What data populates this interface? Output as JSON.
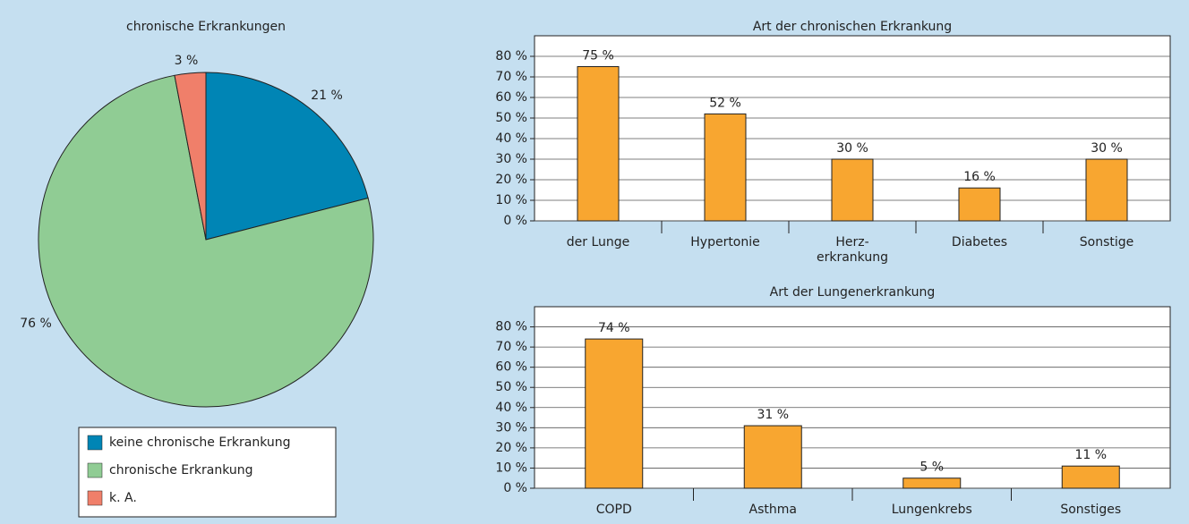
{
  "chart_data": [
    {
      "type": "pie",
      "title": "chronische Erkrankungen",
      "categories": [
        "keine chronische Erkrankung",
        "chronische Erkrankung",
        "k. A."
      ],
      "values": [
        21,
        76,
        3
      ],
      "value_labels": [
        "21 %",
        "76 %",
        "3 %"
      ],
      "colors": [
        "#0085b5",
        "#90cc94",
        "#f07f6a"
      ],
      "legend": "bottom"
    },
    {
      "type": "bar",
      "title": "Art der chronischen Erkrankung",
      "categories": [
        "der Lunge",
        "Hypertonie",
        "Herz-\nerkrankung",
        "Diabetes",
        "Sonstige"
      ],
      "values": [
        75,
        52,
        30,
        16,
        30
      ],
      "value_labels": [
        "75 %",
        "52 %",
        "30 %",
        "16 %",
        "30 %"
      ],
      "color": "#f8a630",
      "ylim": [
        0,
        90
      ],
      "yticks": [
        {
          "value": 0,
          "label": "0 %"
        },
        {
          "value": 10,
          "label": "10 %"
        },
        {
          "value": 20,
          "label": "20 %"
        },
        {
          "value": 30,
          "label": "30 %"
        },
        {
          "value": 40,
          "label": "40 %"
        },
        {
          "value": 50,
          "label": "50 %"
        },
        {
          "value": 60,
          "label": "60 %"
        },
        {
          "value": 70,
          "label": "70 %"
        },
        {
          "value": 80,
          "label": "80 %"
        }
      ],
      "grid": true
    },
    {
      "type": "bar",
      "title": "Art der Lungenerkrankung",
      "categories": [
        "COPD",
        "Asthma",
        "Lungenkrebs",
        "Sonstiges"
      ],
      "values": [
        74,
        31,
        5,
        11
      ],
      "value_labels": [
        "74 %",
        "31 %",
        "5 %",
        "11 %"
      ],
      "color": "#f8a630",
      "ylim": [
        0,
        90
      ],
      "yticks": [
        {
          "value": 0,
          "label": "0 %"
        },
        {
          "value": 10,
          "label": "10 %"
        },
        {
          "value": 20,
          "label": "20 %"
        },
        {
          "value": 30,
          "label": "30 %"
        },
        {
          "value": 40,
          "label": "40 %"
        },
        {
          "value": 50,
          "label": "50 %"
        },
        {
          "value": 60,
          "label": "60 %"
        },
        {
          "value": 70,
          "label": "70 %"
        },
        {
          "value": 80,
          "label": "80 %"
        }
      ],
      "grid": true
    }
  ]
}
